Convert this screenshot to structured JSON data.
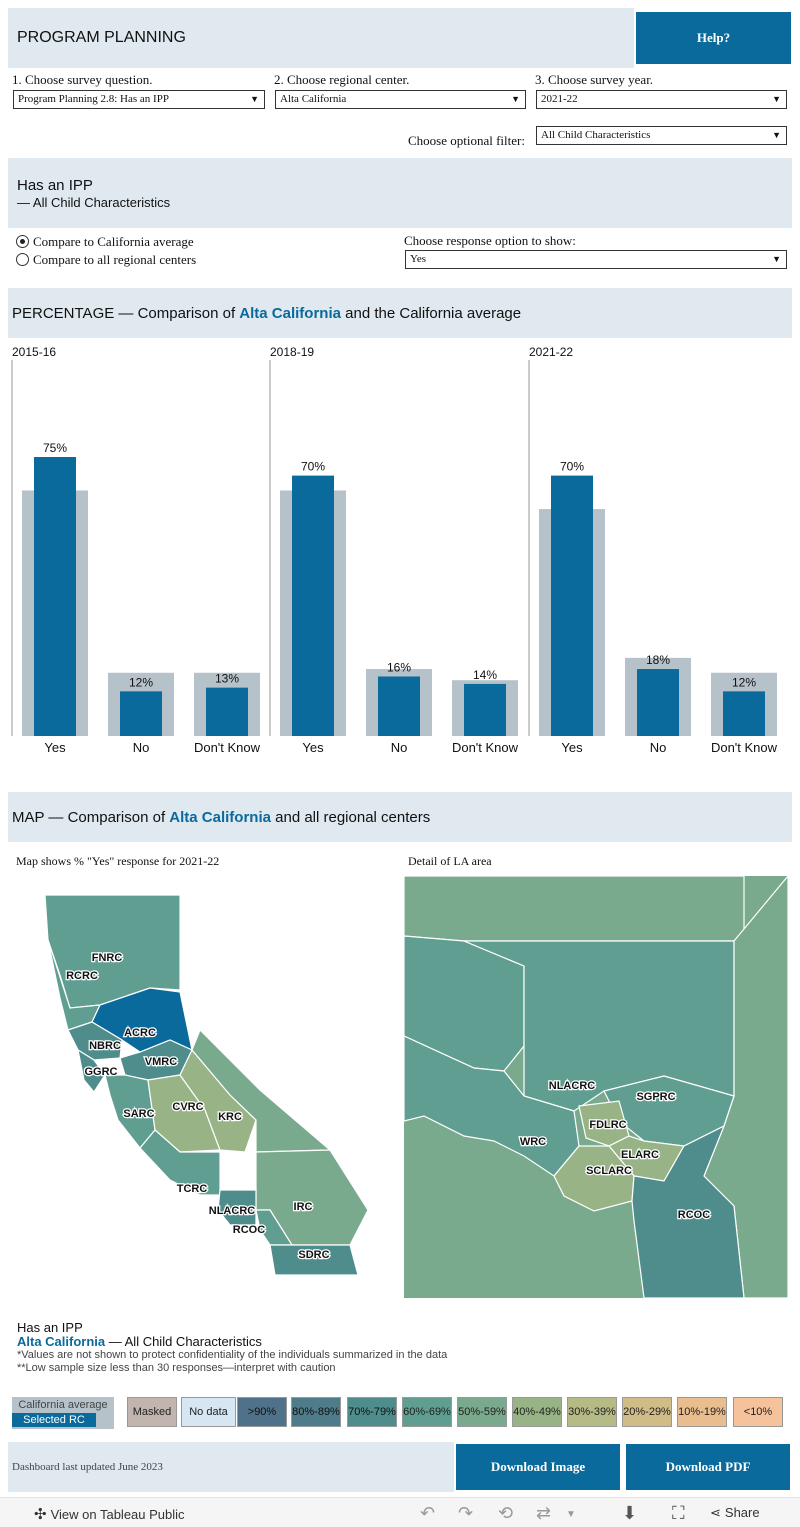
{
  "header": {
    "title": "PROGRAM PLANNING",
    "help_label": "Help?"
  },
  "selectors": {
    "question": {
      "label": "1. Choose survey question.",
      "value": "Program Planning 2.8: Has an IPP"
    },
    "center": {
      "label": "2. Choose regional center.",
      "value": "Alta California"
    },
    "year": {
      "label": "3. Choose survey year.",
      "value": "2021-22"
    },
    "filter": {
      "label": "Choose optional filter:",
      "value": "All Child Characteristics"
    }
  },
  "question_panel": {
    "title": "Has an IPP",
    "subtitle": "— All Child Characteristics"
  },
  "compare": {
    "option_ca": "Compare to California average",
    "option_all": "Compare to all regional centers",
    "response_label": "Choose response option to show:",
    "response_value": "Yes"
  },
  "percentage_section": {
    "prefix": "PERCENTAGE — Comparison of ",
    "center": "Alta California",
    "suffix": " and the California average"
  },
  "chart_data": {
    "type": "bar",
    "ylim": [
      0,
      100
    ],
    "categories": [
      "Yes",
      "No",
      "Don't Know"
    ],
    "panels": [
      {
        "year": "2015-16",
        "selected": [
          75,
          12,
          13
        ],
        "selected_labels": [
          "75%",
          "12%",
          "13%"
        ],
        "average": [
          66,
          17,
          17
        ]
      },
      {
        "year": "2018-19",
        "selected": [
          70,
          16,
          14
        ],
        "selected_labels": [
          "70%",
          "16%",
          "14%"
        ],
        "average": [
          66,
          18,
          15
        ]
      },
      {
        "year": "2021-22",
        "selected": [
          70,
          18,
          12
        ],
        "selected_labels": [
          "70%",
          "18%",
          "12%"
        ],
        "average": [
          61,
          21,
          17
        ]
      }
    ],
    "colors": {
      "selected": "#0a6a9b",
      "average": "#b6c2ca"
    }
  },
  "map_section": {
    "prefix": "MAP — Comparison of ",
    "center": "Alta California",
    "suffix": " and all regional centers",
    "left_caption": "Map shows % \"Yes\" response for 2021-22",
    "right_caption": "Detail of LA area",
    "ca_labels": [
      "FNRC",
      "RCRC",
      "ACRC",
      "NBRC",
      "VMRC",
      "GGRC",
      "CVRC",
      "KRC",
      "SARC",
      "TCRC",
      "IRC",
      "NLACRC",
      "RCOC",
      "SDRC"
    ],
    "la_labels": [
      "NLACRC",
      "SGPRC",
      "FDLRC",
      "WRC",
      "ELARC",
      "SCLARC",
      "RCOC"
    ]
  },
  "footer_notes": {
    "title": "Has an IPP",
    "center": "Alta California",
    "suffix": " — All Child Characteristics",
    "note1": "*Values are not shown to protect confidentiality of the individuals summarized in the data",
    "note2": "**Low sample size less than 30 responses—interpret with caution"
  },
  "legend": {
    "ca_average": "California average",
    "selected_rc": "Selected RC",
    "items": [
      {
        "label": "Masked",
        "color": "#c2b4ae"
      },
      {
        "label": "No data",
        "color": "#d6e6f2"
      },
      {
        "label": ">90%",
        "color": "#4f7189"
      },
      {
        "label": "80%-89%",
        "color": "#4e7c8a"
      },
      {
        "label": "70%-79%",
        "color": "#4f8d8d"
      },
      {
        "label": "60%-69%",
        "color": "#5f9e91"
      },
      {
        "label": "50%-59%",
        "color": "#7aaa8d"
      },
      {
        "label": "40%-49%",
        "color": "#98b486"
      },
      {
        "label": "30%-39%",
        "color": "#b6bb85"
      },
      {
        "label": "20%-29%",
        "color": "#cfbc86"
      },
      {
        "label": "10%-19%",
        "color": "#e9bd8d"
      },
      {
        "label": "<10%",
        "color": "#f6c29c"
      }
    ]
  },
  "bottom": {
    "updated": "Dashboard last updated June 2023",
    "download_image": "Download Image",
    "download_pdf": "Download PDF"
  },
  "tableau_bar": {
    "view_label": "View on Tableau Public",
    "share_label": "Share"
  }
}
